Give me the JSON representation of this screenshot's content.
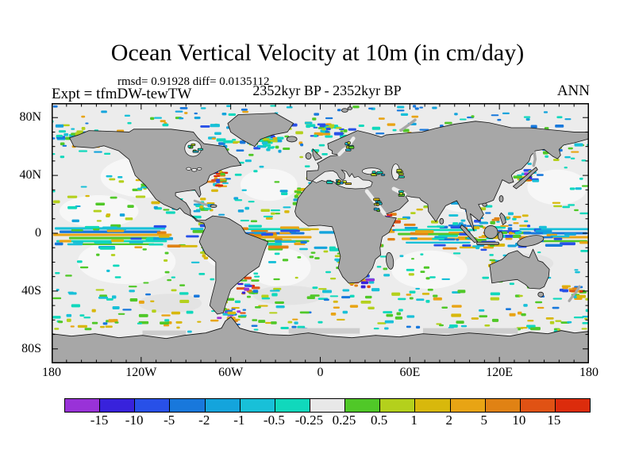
{
  "figure": {
    "title": "Ocean Vertical Velocity at 10m (in cm/day)",
    "stats_line": "rmsd= 0.91928 diff= 0.0135112",
    "experiment_label": "Expt = tfmDW-tewTW",
    "period_label": "2352kyr BP - 2352kyr BP",
    "season_label": "ANN"
  },
  "chart_data": {
    "type": "heatmap",
    "subtype": "global ocean map, equirectangular projection, lon -180..180, lat -90..90",
    "title": "Ocean Vertical Velocity at 10m (in cm/day)",
    "units": "cm/day",
    "stats": {
      "rmsd": 0.91928,
      "diff": 0.0135112
    },
    "experiment": "tfmDW-tewTW",
    "period": "2352kyr BP - 2352kyr BP",
    "season": "ANN",
    "x_axis": {
      "ticks": [
        {
          "label": "180",
          "lon": -180
        },
        {
          "label": "120W",
          "lon": -120
        },
        {
          "label": "60W",
          "lon": -60
        },
        {
          "label": "0",
          "lon": 0
        },
        {
          "label": "60E",
          "lon": 60
        },
        {
          "label": "120E",
          "lon": 120
        },
        {
          "label": "180",
          "lon": 180
        }
      ],
      "minor_tick_step_deg": 10
    },
    "y_axis": {
      "ticks": [
        {
          "label": "80N",
          "lat": 80
        },
        {
          "label": "40N",
          "lat": 40
        },
        {
          "label": "0",
          "lat": 0
        },
        {
          "label": "40S",
          "lat": -40
        },
        {
          "label": "80S",
          "lat": -80
        }
      ],
      "minor_tick_step_deg": 10
    },
    "colorbar": {
      "boundary_labels": [
        "-15",
        "-10",
        "-5",
        "-2",
        "-1",
        "-0.5",
        "-0.25",
        "0.25",
        "0.5",
        "1",
        "2",
        "5",
        "10",
        "15"
      ],
      "segment_colors": [
        "#9932D8",
        "#3822DC",
        "#2850E8",
        "#1878DC",
        "#14A4DC",
        "#18C0D8",
        "#10D8BC",
        "#E8E8E8",
        "#50C828",
        "#B4D01C",
        "#D8B80C",
        "#E8A414",
        "#E08214",
        "#E05214",
        "#DC2C0C"
      ]
    },
    "map_colors": {
      "land": "#a7a7a7",
      "coastline": "#141414",
      "ocean_neutral": "#ececec",
      "ice_shelf": "#cdcdcd"
    },
    "field_description": "Difference field (tfmDW - tewTW); mostly within ±0.25 cm/day (light gray ocean); stronger alternating positive/negative bands along the equator, western boundary currents (Gulf Stream, Kuroshio), subpolar North Atlantic/Pacific, Indonesian seas and the Southern Ocean; continents masked gray"
  }
}
